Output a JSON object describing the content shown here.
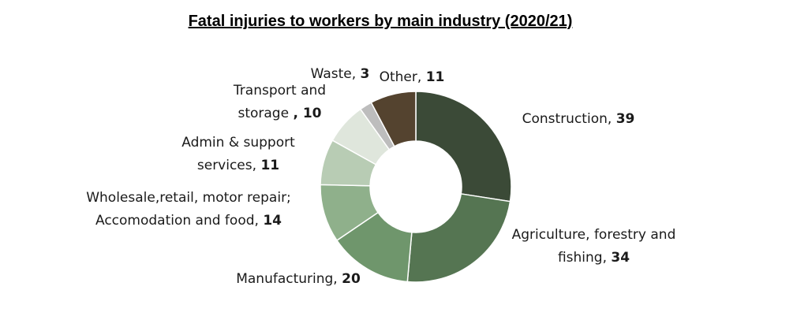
{
  "chart_data": {
    "type": "donut",
    "title": "Fatal injuries to workers by main industry (2020/21)",
    "categories": [
      "Construction,",
      "Agriculture, forestry and fishing,",
      "Manufacturing,",
      "Wholesale,retail, motor repair; Accomodation and food,",
      "Admin & support services,",
      "Transport and storage",
      "Waste,",
      "Other,"
    ],
    "values": [
      39,
      34,
      20,
      14,
      11,
      10,
      3,
      11
    ],
    "value_labels": [
      "39",
      "34",
      "20",
      "14",
      "11",
      ", 10",
      "3",
      "11"
    ],
    "colors": [
      "#3b4a37",
      "#557552",
      "#6f966c",
      "#8fb08b",
      "#b8ccb4",
      "#dfe6dc",
      "#bdbdbd",
      "#54432f"
    ]
  }
}
